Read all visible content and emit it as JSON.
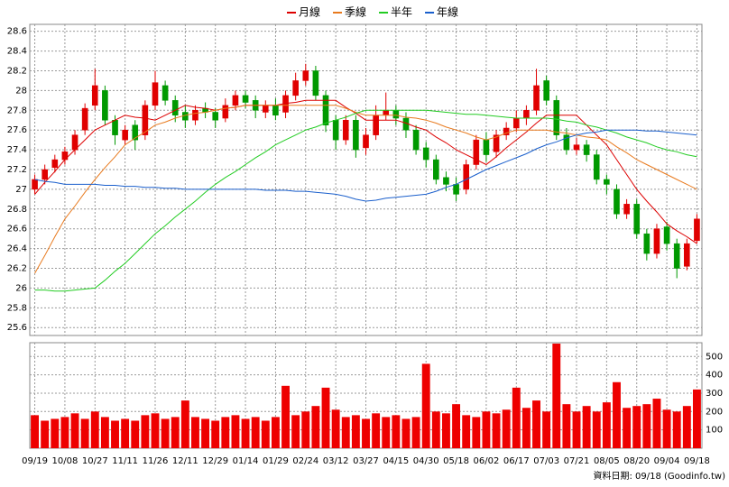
{
  "chart_data": {
    "type": "candlestick",
    "categories": [
      "09/19",
      null,
      null,
      "10/08",
      null,
      null,
      "10/27",
      null,
      null,
      "11/11",
      null,
      null,
      "11/26",
      null,
      null,
      "12/11",
      null,
      null,
      "12/29",
      null,
      null,
      "01/14",
      null,
      null,
      "01/29",
      null,
      null,
      "02/24",
      null,
      null,
      "03/12",
      null,
      null,
      "03/27",
      null,
      null,
      "04/15",
      null,
      null,
      "04/30",
      null,
      null,
      "05/18",
      null,
      null,
      "06/02",
      null,
      null,
      "06/17",
      null,
      null,
      "07/03",
      null,
      null,
      "07/21",
      null,
      null,
      "08/05",
      null,
      null,
      "08/20",
      null,
      null,
      "09/04",
      null,
      null,
      "09/18"
    ],
    "open": [
      27.0,
      27.1,
      27.22,
      27.3,
      27.4,
      27.6,
      27.85,
      28.0,
      27.7,
      27.5,
      27.65,
      27.55,
      27.85,
      28.05,
      27.9,
      27.78,
      27.7,
      27.82,
      27.78,
      27.72,
      27.85,
      27.95,
      27.9,
      27.78,
      27.85,
      27.78,
      27.95,
      28.1,
      28.2,
      27.95,
      27.7,
      27.5,
      27.7,
      27.42,
      27.55,
      27.75,
      27.8,
      27.72,
      27.6,
      27.42,
      27.3,
      27.12,
      27.05,
      27.0,
      27.25,
      27.5,
      27.38,
      27.55,
      27.62,
      27.72,
      27.8,
      28.1,
      27.9,
      27.55,
      27.4,
      27.45,
      27.35,
      27.1,
      27.0,
      26.75,
      26.85,
      26.55,
      26.35,
      26.62,
      26.45,
      26.22,
      26.48
    ],
    "high": [
      27.15,
      27.25,
      27.35,
      27.43,
      27.6,
      27.87,
      28.22,
      28.05,
      27.75,
      27.65,
      27.7,
      27.9,
      28.2,
      28.1,
      27.95,
      27.85,
      27.85,
      27.88,
      27.82,
      27.92,
      28.0,
      28.0,
      27.95,
      27.9,
      27.92,
      28.0,
      28.18,
      28.27,
      28.25,
      28.0,
      27.75,
      27.75,
      27.75,
      27.62,
      27.85,
      27.98,
      27.85,
      27.78,
      27.65,
      27.48,
      27.35,
      27.18,
      27.12,
      27.3,
      27.55,
      27.58,
      27.6,
      27.68,
      27.8,
      27.85,
      28.22,
      28.15,
      27.95,
      27.62,
      27.52,
      27.5,
      27.4,
      27.15,
      27.05,
      26.9,
      26.9,
      26.6,
      26.65,
      26.67,
      26.5,
      26.5,
      26.75
    ],
    "low": [
      26.95,
      27.05,
      27.17,
      27.25,
      27.35,
      27.55,
      27.8,
      27.65,
      27.45,
      27.45,
      27.4,
      27.5,
      27.8,
      27.85,
      27.68,
      27.62,
      27.65,
      27.72,
      27.62,
      27.68,
      27.8,
      27.82,
      27.72,
      27.72,
      27.7,
      27.72,
      27.9,
      28.05,
      27.9,
      27.58,
      27.4,
      27.45,
      27.32,
      27.35,
      27.5,
      27.7,
      27.65,
      27.52,
      27.35,
      27.22,
      27.05,
      26.98,
      26.88,
      26.95,
      27.2,
      27.28,
      27.32,
      27.5,
      27.58,
      27.65,
      27.75,
      27.85,
      27.5,
      27.35,
      27.35,
      27.28,
      27.05,
      26.95,
      26.7,
      26.7,
      26.5,
      26.28,
      26.3,
      26.38,
      26.1,
      26.18,
      26.45
    ],
    "close": [
      27.1,
      27.2,
      27.3,
      27.38,
      27.55,
      27.82,
      28.05,
      27.7,
      27.55,
      27.6,
      27.5,
      27.85,
      28.08,
      27.9,
      27.75,
      27.7,
      27.8,
      27.78,
      27.7,
      27.85,
      27.95,
      27.88,
      27.8,
      27.85,
      27.75,
      27.95,
      28.1,
      28.2,
      27.95,
      27.65,
      27.5,
      27.7,
      27.4,
      27.55,
      27.75,
      27.8,
      27.72,
      27.6,
      27.4,
      27.3,
      27.1,
      27.05,
      26.95,
      27.25,
      27.5,
      27.35,
      27.55,
      27.62,
      27.72,
      27.8,
      28.05,
      27.9,
      27.55,
      27.4,
      27.45,
      27.35,
      27.1,
      27.05,
      26.75,
      26.85,
      26.55,
      26.35,
      26.6,
      26.45,
      26.2,
      26.45,
      26.7
    ],
    "up_color": "#e00000",
    "down_color": "#009900",
    "ylim": [
      25.52,
      28.67
    ],
    "yticks": [
      25.6,
      25.8,
      26,
      26.2,
      26.4,
      26.6,
      26.8,
      27,
      27.2,
      27.4,
      27.6,
      27.8,
      28,
      28.2,
      28.4,
      28.6
    ],
    "grid": true,
    "series": [
      {
        "name": "月線",
        "color": "#dd0000",
        "values": [
          26.95,
          27.07,
          27.18,
          27.3,
          27.4,
          27.5,
          27.6,
          27.65,
          27.7,
          27.75,
          27.73,
          27.72,
          27.7,
          27.75,
          27.8,
          27.85,
          27.83,
          27.82,
          27.8,
          27.82,
          27.83,
          27.85,
          27.85,
          27.85,
          27.85,
          27.87,
          27.88,
          27.9,
          27.9,
          27.9,
          27.9,
          27.83,
          27.77,
          27.7,
          27.7,
          27.7,
          27.7,
          27.67,
          27.63,
          27.6,
          27.53,
          27.47,
          27.4,
          27.35,
          27.3,
          27.25,
          27.33,
          27.42,
          27.5,
          27.58,
          27.67,
          27.75,
          27.75,
          27.75,
          27.75,
          27.65,
          27.55,
          27.45,
          27.3,
          27.15,
          27.0,
          26.88,
          26.77,
          26.65,
          26.58,
          26.52,
          26.45
        ]
      },
      {
        "name": "季線",
        "color": "#e87a1e",
        "values": [
          26.15,
          26.33,
          26.52,
          26.7,
          26.83,
          26.97,
          27.1,
          27.22,
          27.33,
          27.45,
          27.52,
          27.58,
          27.65,
          27.68,
          27.72,
          27.75,
          27.77,
          27.78,
          27.8,
          27.82,
          27.83,
          27.85,
          27.85,
          27.85,
          27.85,
          27.85,
          27.85,
          27.85,
          27.85,
          27.85,
          27.85,
          27.82,
          27.78,
          27.75,
          27.75,
          27.75,
          27.75,
          27.73,
          27.72,
          27.7,
          27.67,
          27.63,
          27.6,
          27.57,
          27.53,
          27.5,
          27.53,
          27.57,
          27.6,
          27.6,
          27.6,
          27.6,
          27.58,
          27.57,
          27.55,
          27.53,
          27.52,
          27.5,
          27.43,
          27.37,
          27.3,
          27.25,
          27.2,
          27.15,
          27.1,
          27.05,
          27.0
        ]
      },
      {
        "name": "半年",
        "color": "#22cc22",
        "values": [
          25.98,
          25.98,
          25.97,
          25.97,
          25.98,
          25.99,
          26.0,
          26.08,
          26.17,
          26.25,
          26.35,
          26.45,
          26.55,
          26.63,
          26.72,
          26.8,
          26.88,
          26.97,
          27.05,
          27.12,
          27.18,
          27.25,
          27.32,
          27.38,
          27.45,
          27.5,
          27.55,
          27.6,
          27.63,
          27.67,
          27.7,
          27.73,
          27.77,
          27.8,
          27.8,
          27.8,
          27.8,
          27.8,
          27.8,
          27.8,
          27.79,
          27.78,
          27.77,
          27.76,
          27.76,
          27.75,
          27.74,
          27.73,
          27.72,
          27.72,
          27.72,
          27.72,
          27.71,
          27.69,
          27.68,
          27.65,
          27.63,
          27.6,
          27.57,
          27.53,
          27.5,
          27.47,
          27.43,
          27.4,
          27.38,
          27.35,
          27.33
        ]
      },
      {
        "name": "年線",
        "color": "#1a5fcc",
        "values": [
          27.1,
          27.08,
          27.07,
          27.05,
          27.05,
          27.05,
          27.05,
          27.04,
          27.04,
          27.03,
          27.03,
          27.02,
          27.02,
          27.01,
          27.01,
          27.0,
          27.0,
          27.0,
          27.0,
          27.0,
          27.0,
          27.0,
          27.0,
          26.99,
          26.99,
          26.99,
          26.98,
          26.98,
          26.97,
          26.96,
          26.95,
          26.93,
          26.9,
          26.88,
          26.89,
          26.91,
          26.92,
          26.93,
          26.94,
          26.95,
          26.98,
          27.02,
          27.05,
          27.1,
          27.15,
          27.2,
          27.24,
          27.28,
          27.32,
          27.36,
          27.41,
          27.45,
          27.48,
          27.52,
          27.55,
          27.57,
          27.58,
          27.6,
          27.6,
          27.6,
          27.6,
          27.59,
          27.59,
          27.58,
          27.57,
          27.56,
          27.55
        ]
      }
    ],
    "volume": {
      "color": "#ee0000",
      "axis": "y2",
      "values": [
        180,
        150,
        160,
        170,
        190,
        160,
        200,
        170,
        150,
        160,
        150,
        180,
        190,
        160,
        170,
        260,
        170,
        160,
        150,
        170,
        180,
        160,
        170,
        150,
        170,
        340,
        180,
        200,
        230,
        330,
        210,
        170,
        180,
        160,
        190,
        170,
        180,
        160,
        170,
        460,
        200,
        190,
        240,
        180,
        170,
        200,
        190,
        210,
        330,
        220,
        260,
        200,
        570,
        240,
        200,
        230,
        200,
        250,
        360,
        220,
        230,
        240,
        270,
        210,
        200,
        230,
        320
      ]
    },
    "y2lim": [
      0,
      575
    ],
    "y2ticks": [
      100,
      200,
      300,
      400,
      500
    ],
    "source": "資料日期: 09/18  (Goodinfo.tw)"
  }
}
